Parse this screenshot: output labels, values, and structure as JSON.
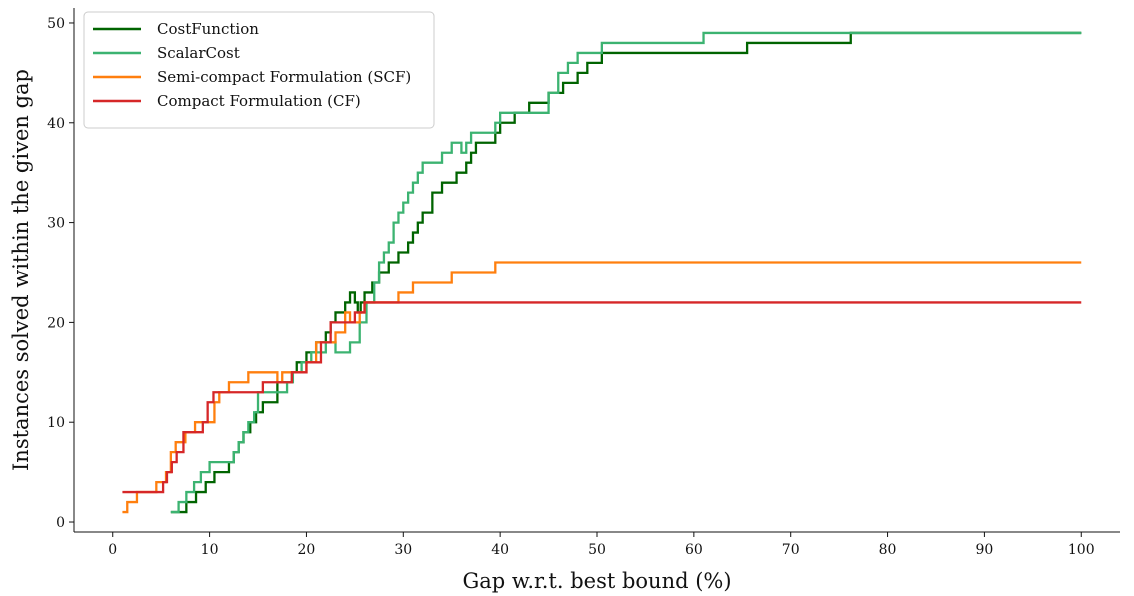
{
  "chart_data": {
    "type": "line",
    "title": "",
    "xlabel": "Gap w.r.t. best bound (%)",
    "ylabel": "Instances solved within the given gap",
    "xlim": [
      -4,
      104
    ],
    "ylim": [
      -1,
      51.5
    ],
    "xticks": [
      0,
      10,
      20,
      30,
      40,
      50,
      60,
      70,
      80,
      90,
      100
    ],
    "yticks": [
      0,
      10,
      20,
      30,
      40,
      50
    ],
    "grid": false,
    "legend_position": "top-left",
    "step": true,
    "series": [
      {
        "name": "CostFunction",
        "color": "#006400",
        "x": [
          6,
          7.6,
          8.6,
          9.6,
          10.5,
          12,
          12.5,
          13,
          13.5,
          14.2,
          14.8,
          15.5,
          17,
          18.5,
          19,
          20,
          21,
          22,
          22.5,
          23,
          24,
          24.5,
          25,
          25.3,
          25.6,
          26,
          26.8,
          27.5,
          28.5,
          29.5,
          30.5,
          31,
          31.5,
          32,
          33,
          34,
          35.5,
          36.5,
          37,
          37.5,
          39.5,
          40,
          41.5,
          43,
          45,
          46.5,
          48,
          49,
          50.5,
          52,
          65.5,
          76.2,
          100
        ],
        "y": [
          1,
          2,
          3,
          4,
          5,
          6,
          7,
          8,
          9,
          10,
          11,
          12,
          14,
          15,
          16,
          17,
          18,
          19,
          20,
          21,
          22,
          23,
          22,
          21,
          22,
          23,
          24,
          25,
          26,
          27,
          28,
          29,
          30,
          31,
          33,
          34,
          35,
          36,
          37,
          38,
          39,
          40,
          41,
          42,
          43,
          44,
          45,
          46,
          47,
          47,
          48,
          49,
          49
        ]
      },
      {
        "name": "ScalarCost",
        "color": "#3cb371",
        "x": [
          6,
          6.8,
          7.6,
          8.4,
          9.1,
          10,
          12.5,
          13,
          13.5,
          14,
          14.6,
          15,
          18,
          18.6,
          19.5,
          20.5,
          22,
          23,
          24.5,
          25.5,
          26.2,
          27,
          27.5,
          28,
          28.5,
          29,
          29.5,
          30,
          30.5,
          31,
          31.5,
          32,
          34,
          35,
          36,
          36.5,
          37,
          38,
          39.5,
          40,
          41,
          45,
          46,
          47,
          48,
          50.5,
          61,
          100
        ],
        "y": [
          1,
          2,
          3,
          4,
          5,
          6,
          7,
          8,
          9,
          10,
          11,
          13,
          14,
          15,
          16,
          17,
          18,
          17,
          18,
          20,
          22,
          24,
          26,
          27,
          28,
          30,
          31,
          32,
          33,
          34,
          35,
          36,
          37,
          38,
          37,
          38,
          39,
          39,
          40,
          41,
          41,
          43,
          45,
          46,
          47,
          48,
          49,
          49
        ]
      },
      {
        "name": "Semi-compact Formulation (SCF)",
        "color": "#ff7f0e",
        "x": [
          1,
          1.5,
          2.5,
          4.5,
          5.5,
          6,
          6.5,
          7.5,
          8.5,
          9.5,
          10.5,
          11,
          12,
          14,
          17,
          17.5,
          20,
          21,
          23,
          24,
          24.5,
          25.5,
          26,
          28,
          29.5,
          31,
          35,
          39.5,
          100
        ],
        "y": [
          1,
          2,
          3,
          4,
          5,
          7,
          8,
          9,
          10,
          10,
          12,
          13,
          14,
          15,
          14,
          15,
          16,
          18,
          19,
          21,
          20,
          21,
          22,
          22,
          23,
          24,
          25,
          26,
          26
        ]
      },
      {
        "name": "Compact Formulation (CF)",
        "color": "#d62728",
        "x": [
          1,
          5.2,
          5.6,
          6.1,
          6.6,
          7.3,
          9.3,
          9.8,
          10.4,
          11.3,
          15.5,
          18.5,
          20,
          21.5,
          22.5,
          24.5,
          25,
          26,
          100
        ],
        "y": [
          3,
          4,
          5,
          6,
          7,
          9,
          10,
          12,
          13,
          13,
          14,
          15,
          16,
          18,
          20,
          20,
          21,
          22,
          22
        ]
      }
    ]
  }
}
